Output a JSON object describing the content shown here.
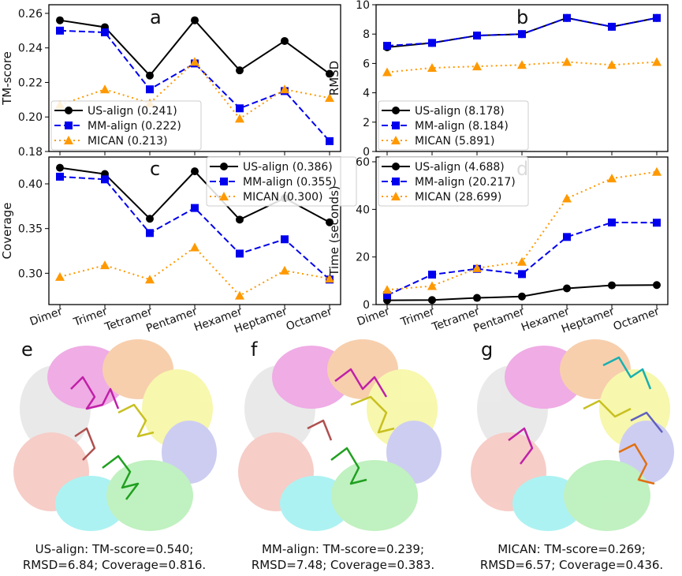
{
  "chart_data": [
    {
      "panel": "a",
      "type": "line",
      "ylabel": "TM-score",
      "ylim": [
        0.18,
        0.265
      ],
      "yticks": [
        0.18,
        0.2,
        0.22,
        0.24,
        0.26
      ],
      "categories": [
        "Dimer",
        "Trimer",
        "Tetramer",
        "Pentamer",
        "Hexamer",
        "Heptamer",
        "Octamer"
      ],
      "legend_position": "lower-left",
      "series": [
        {
          "name": "US-align (0.241)",
          "values": [
            0.256,
            0.252,
            0.224,
            0.256,
            0.227,
            0.244,
            0.225
          ]
        },
        {
          "name": "MM-align (0.222)",
          "values": [
            0.25,
            0.249,
            0.216,
            0.231,
            0.205,
            0.215,
            0.186
          ]
        },
        {
          "name": "MICAN (0.213)",
          "values": [
            0.207,
            0.216,
            0.208,
            0.232,
            0.199,
            0.216,
            0.211
          ]
        }
      ]
    },
    {
      "panel": "b",
      "type": "line",
      "ylabel": "RMSD",
      "ylim": [
        0,
        10
      ],
      "yticks": [
        0,
        2,
        4,
        6,
        8,
        10
      ],
      "categories": [
        "Dimer",
        "Trimer",
        "Tetramer",
        "Pentamer",
        "Hexamer",
        "Heptamer",
        "Octamer"
      ],
      "legend_position": "lower-left",
      "series": [
        {
          "name": "US-align (8.178)",
          "values": [
            7.1,
            7.4,
            7.9,
            8.0,
            9.1,
            8.5,
            9.1
          ]
        },
        {
          "name": "MM-align (8.184)",
          "values": [
            7.2,
            7.4,
            7.9,
            8.0,
            9.1,
            8.5,
            9.1
          ]
        },
        {
          "name": "MICAN (5.891)",
          "values": [
            5.4,
            5.7,
            5.8,
            5.9,
            6.1,
            5.9,
            6.1
          ]
        }
      ]
    },
    {
      "panel": "c",
      "type": "line",
      "ylabel": "Coverage",
      "ylim": [
        0.265,
        0.43
      ],
      "yticks": [
        0.3,
        0.35,
        0.4
      ],
      "categories": [
        "Dimer",
        "Trimer",
        "Tetramer",
        "Pentamer",
        "Hexamer",
        "Heptamer",
        "Octamer"
      ],
      "legend_position": "top-right",
      "series": [
        {
          "name": "US-align (0.386)",
          "values": [
            0.418,
            0.411,
            0.361,
            0.414,
            0.36,
            0.384,
            0.357
          ]
        },
        {
          "name": "MM-align (0.355)",
          "values": [
            0.408,
            0.405,
            0.345,
            0.373,
            0.322,
            0.338,
            0.293
          ]
        },
        {
          "name": "MICAN (0.300)",
          "values": [
            0.296,
            0.309,
            0.293,
            0.329,
            0.275,
            0.303,
            0.294
          ]
        }
      ]
    },
    {
      "panel": "d",
      "type": "line",
      "ylabel": "Time (seconds)",
      "ylim": [
        0,
        62
      ],
      "yticks": [
        0,
        20,
        40,
        60
      ],
      "categories": [
        "Dimer",
        "Trimer",
        "Tetramer",
        "Pentamer",
        "Hexamer",
        "Heptamer",
        "Octamer"
      ],
      "legend_position": "top-left",
      "series": [
        {
          "name": "US-align (4.688)",
          "values": [
            1.8,
            1.9,
            2.8,
            3.4,
            6.8,
            8.1,
            8.2
          ]
        },
        {
          "name": "MM-align (20.217)",
          "values": [
            3.9,
            12.6,
            15.0,
            12.8,
            28.4,
            34.5,
            34.4
          ]
        },
        {
          "name": "MICAN (28.699)",
          "values": [
            6.2,
            7.8,
            15.3,
            18.0,
            44.6,
            53.0,
            55.8
          ]
        }
      ]
    }
  ],
  "series_colors": [
    "#000000",
    "#0000ee",
    "#ff9900"
  ],
  "structures": [
    {
      "letter": "e",
      "caption_line1": "US-align: TM-score=0.540;",
      "caption_line2": "RMSD=6.84; Coverage=0.816."
    },
    {
      "letter": "f",
      "caption_line1": "MM-align: TM-score=0.239;",
      "caption_line2": "RMSD=7.48; Coverage=0.383."
    },
    {
      "letter": "g",
      "caption_line1": "MICAN: TM-score=0.269;",
      "caption_line2": "RMSD=6.57; Coverage=0.436."
    }
  ]
}
